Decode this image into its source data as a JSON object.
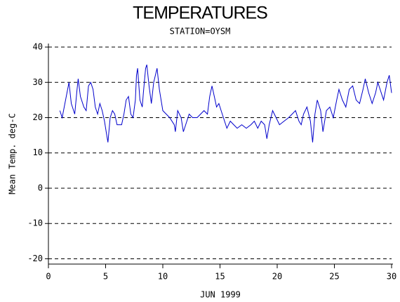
{
  "chart_data": {
    "type": "line",
    "title": "TEMPERATURES",
    "subtitle": "STATION=OYSM",
    "y_label": "Mean Temp. deg-C",
    "x_label": "JUN 1999",
    "xlim": [
      0,
      30
    ],
    "xticks": [
      0,
      5,
      10,
      15,
      20,
      25,
      30
    ],
    "ylim": [
      -21.5,
      41
    ],
    "yticks": [
      -20,
      -10,
      0,
      10,
      20,
      30,
      40
    ],
    "grid": true,
    "series": [
      {
        "name": "Mean Temp",
        "color": "#0000cc",
        "x": [
          1.0,
          1.2,
          1.8,
          2.0,
          2.3,
          2.5,
          2.6,
          2.8,
          3.1,
          3.3,
          3.5,
          3.7,
          3.9,
          4.1,
          4.3,
          4.5,
          4.7,
          4.9,
          5.1,
          5.2,
          5.4,
          5.6,
          5.8,
          6.0,
          6.4,
          6.6,
          6.8,
          7.0,
          7.2,
          7.4,
          7.6,
          7.7,
          7.8,
          8.0,
          8.2,
          8.3,
          8.5,
          8.6,
          8.8,
          9.0,
          9.2,
          9.5,
          9.7,
          10.0,
          10.3,
          10.6,
          11.0,
          11.1,
          11.3,
          11.6,
          11.8,
          12.0,
          12.3,
          12.6,
          13.0,
          13.3,
          13.6,
          13.9,
          14.1,
          14.3,
          14.5,
          14.7,
          14.9,
          15.1,
          15.4,
          15.6,
          15.9,
          16.2,
          16.5,
          16.9,
          17.3,
          17.7,
          18.0,
          18.3,
          18.6,
          18.9,
          19.1,
          19.3,
          19.6,
          19.9,
          20.2,
          20.6,
          21.0,
          21.3,
          21.6,
          21.9,
          22.1,
          22.3,
          22.6,
          22.9,
          23.1,
          23.3,
          23.5,
          23.8,
          24.0,
          24.3,
          24.6,
          24.9,
          25.2,
          25.4,
          25.7,
          26.0,
          26.3,
          26.6,
          26.9,
          27.2,
          27.5,
          27.7,
          28.0,
          28.3,
          28.6,
          28.8,
          29.1,
          29.3,
          29.6,
          29.8,
          30.0
        ],
        "values": [
          22,
          20,
          30,
          24,
          21,
          28,
          31,
          26,
          23,
          22,
          29,
          30,
          28,
          23,
          21,
          24,
          22,
          19,
          15,
          13,
          20,
          22,
          21,
          18,
          18,
          21,
          25,
          26,
          21,
          20,
          25,
          32,
          34,
          25,
          23,
          27,
          34,
          35,
          29,
          24,
          30,
          34,
          28,
          22,
          21,
          20,
          18,
          16,
          22,
          20,
          16,
          18,
          21,
          20,
          20,
          21,
          22,
          21,
          26,
          29,
          26,
          23,
          24,
          22,
          19,
          17,
          19,
          18,
          17,
          18,
          17,
          18,
          19,
          17,
          19,
          18,
          14,
          18,
          22,
          20,
          18,
          19,
          20,
          21,
          22,
          19,
          18,
          21,
          23,
          19,
          13,
          21,
          25,
          22,
          16,
          22,
          23,
          20,
          25,
          28,
          25,
          23,
          28,
          29,
          25,
          24,
          28,
          31,
          27,
          24,
          27,
          30,
          27,
          25,
          30,
          32,
          27
        ]
      }
    ]
  }
}
